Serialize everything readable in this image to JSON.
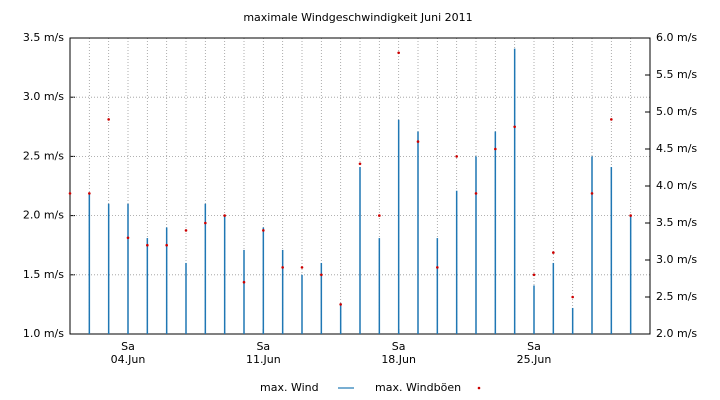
{
  "chart_data": {
    "type": "bar-dot",
    "title": "maximale Windgeschwindigkeit Juni 2011",
    "x": [
      1,
      2,
      3,
      4,
      5,
      6,
      7,
      8,
      9,
      10,
      11,
      12,
      13,
      14,
      15,
      16,
      17,
      18,
      19,
      20,
      21,
      22,
      23,
      24,
      25,
      26,
      27,
      28,
      29,
      30
    ],
    "xlim": [
      1,
      31
    ],
    "xticks": [
      {
        "value": 4,
        "weekday": "Sa",
        "label": "04.Jun"
      },
      {
        "value": 11,
        "weekday": "Sa",
        "label": "11.Jun"
      },
      {
        "value": 18,
        "weekday": "Sa",
        "label": "18.Jun"
      },
      {
        "value": 25,
        "weekday": "Sa",
        "label": "25.Jun"
      }
    ],
    "ylim": [
      1.0,
      3.5
    ],
    "yticks": [
      {
        "value": 1.0,
        "label": "1.0 m/s"
      },
      {
        "value": 1.5,
        "label": "1.5 m/s"
      },
      {
        "value": 2.0,
        "label": "2.0 m/s"
      },
      {
        "value": 2.5,
        "label": "2.5 m/s"
      },
      {
        "value": 3.0,
        "label": "3.0 m/s"
      },
      {
        "value": 3.5,
        "label": "3.5 m/s"
      }
    ],
    "y2lim": [
      2.0,
      6.0
    ],
    "y2ticks": [
      {
        "value": 2.0,
        "label": "2.0 m/s"
      },
      {
        "value": 2.5,
        "label": "2.5 m/s"
      },
      {
        "value": 3.0,
        "label": "3.0 m/s"
      },
      {
        "value": 3.5,
        "label": "3.5 m/s"
      },
      {
        "value": 4.0,
        "label": "4.0 m/s"
      },
      {
        "value": 4.5,
        "label": "4.5 m/s"
      },
      {
        "value": 5.0,
        "label": "5.0 m/s"
      },
      {
        "value": 5.5,
        "label": "5.5 m/s"
      },
      {
        "value": 6.0,
        "label": "6.0 m/s"
      }
    ],
    "grid": true,
    "series": [
      {
        "name": "max. Wind",
        "color": "#1f77b4",
        "mark": "bar",
        "values": [
          null,
          2.19,
          2.1,
          2.1,
          1.81,
          1.9,
          1.6,
          2.1,
          2.0,
          1.71,
          1.9,
          1.71,
          1.5,
          1.6,
          1.26,
          2.41,
          1.81,
          2.81,
          2.71,
          1.81,
          2.21,
          2.5,
          2.71,
          3.41,
          1.41,
          1.6,
          1.22,
          2.5,
          2.41,
          2.0
        ]
      },
      {
        "name": "max. Windböen",
        "color": "#cc0000",
        "mark": "dot",
        "axis": "y2",
        "values": [
          3.9,
          3.9,
          4.9,
          3.3,
          3.2,
          3.2,
          3.4,
          3.5,
          3.6,
          2.7,
          3.4,
          2.9,
          2.9,
          2.8,
          2.4,
          4.3,
          3.6,
          5.8,
          4.6,
          2.9,
          4.4,
          3.9,
          4.5,
          4.8,
          2.8,
          3.1,
          2.5,
          3.9,
          4.9,
          3.6
        ]
      }
    ]
  }
}
